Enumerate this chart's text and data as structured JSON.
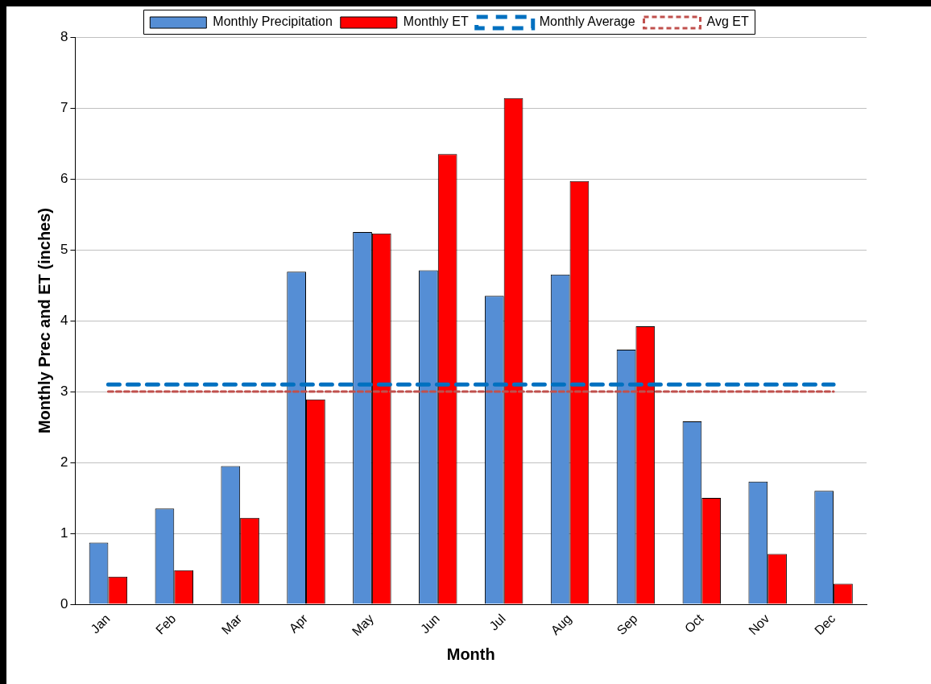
{
  "chart_data": {
    "type": "bar",
    "xlabel": "Month",
    "ylabel": "Monthly Prec and ET (inches)",
    "categories": [
      "Jan",
      "Feb",
      "Mar",
      "Apr",
      "May",
      "Jun",
      "Jul",
      "Aug",
      "Sep",
      "Oct",
      "Nov",
      "Dec"
    ],
    "series": [
      {
        "name": "Monthly Precipitation",
        "color": "#558ed5",
        "values": [
          0.87,
          1.35,
          1.95,
          4.69,
          5.25,
          4.71,
          4.35,
          4.65,
          3.59,
          2.58,
          1.73,
          1.6
        ]
      },
      {
        "name": "Monthly ET",
        "color": "#ff0000",
        "values": [
          0.39,
          0.48,
          1.22,
          2.89,
          5.23,
          6.35,
          7.14,
          5.97,
          3.92,
          1.5,
          0.71,
          0.29
        ]
      },
      {
        "name": "Monthly Average",
        "type": "line",
        "line_style": "dashed",
        "color": "#0070c0",
        "values": [
          3.1,
          3.1,
          3.1,
          3.1,
          3.1,
          3.1,
          3.1,
          3.1,
          3.1,
          3.1,
          3.1,
          3.1
        ]
      },
      {
        "name": "Avg ET",
        "type": "line",
        "line_style": "dotted",
        "color": "#c0504d",
        "values": [
          3.0,
          3.0,
          3.0,
          3.0,
          3.0,
          3.0,
          3.0,
          3.0,
          3.0,
          3.0,
          3.0,
          3.0
        ]
      }
    ],
    "ylim": [
      0,
      8
    ],
    "yticks": [
      0,
      1,
      2,
      3,
      4,
      5,
      6,
      7,
      8
    ],
    "grid": "y",
    "legend": "top",
    "marker": "none"
  }
}
